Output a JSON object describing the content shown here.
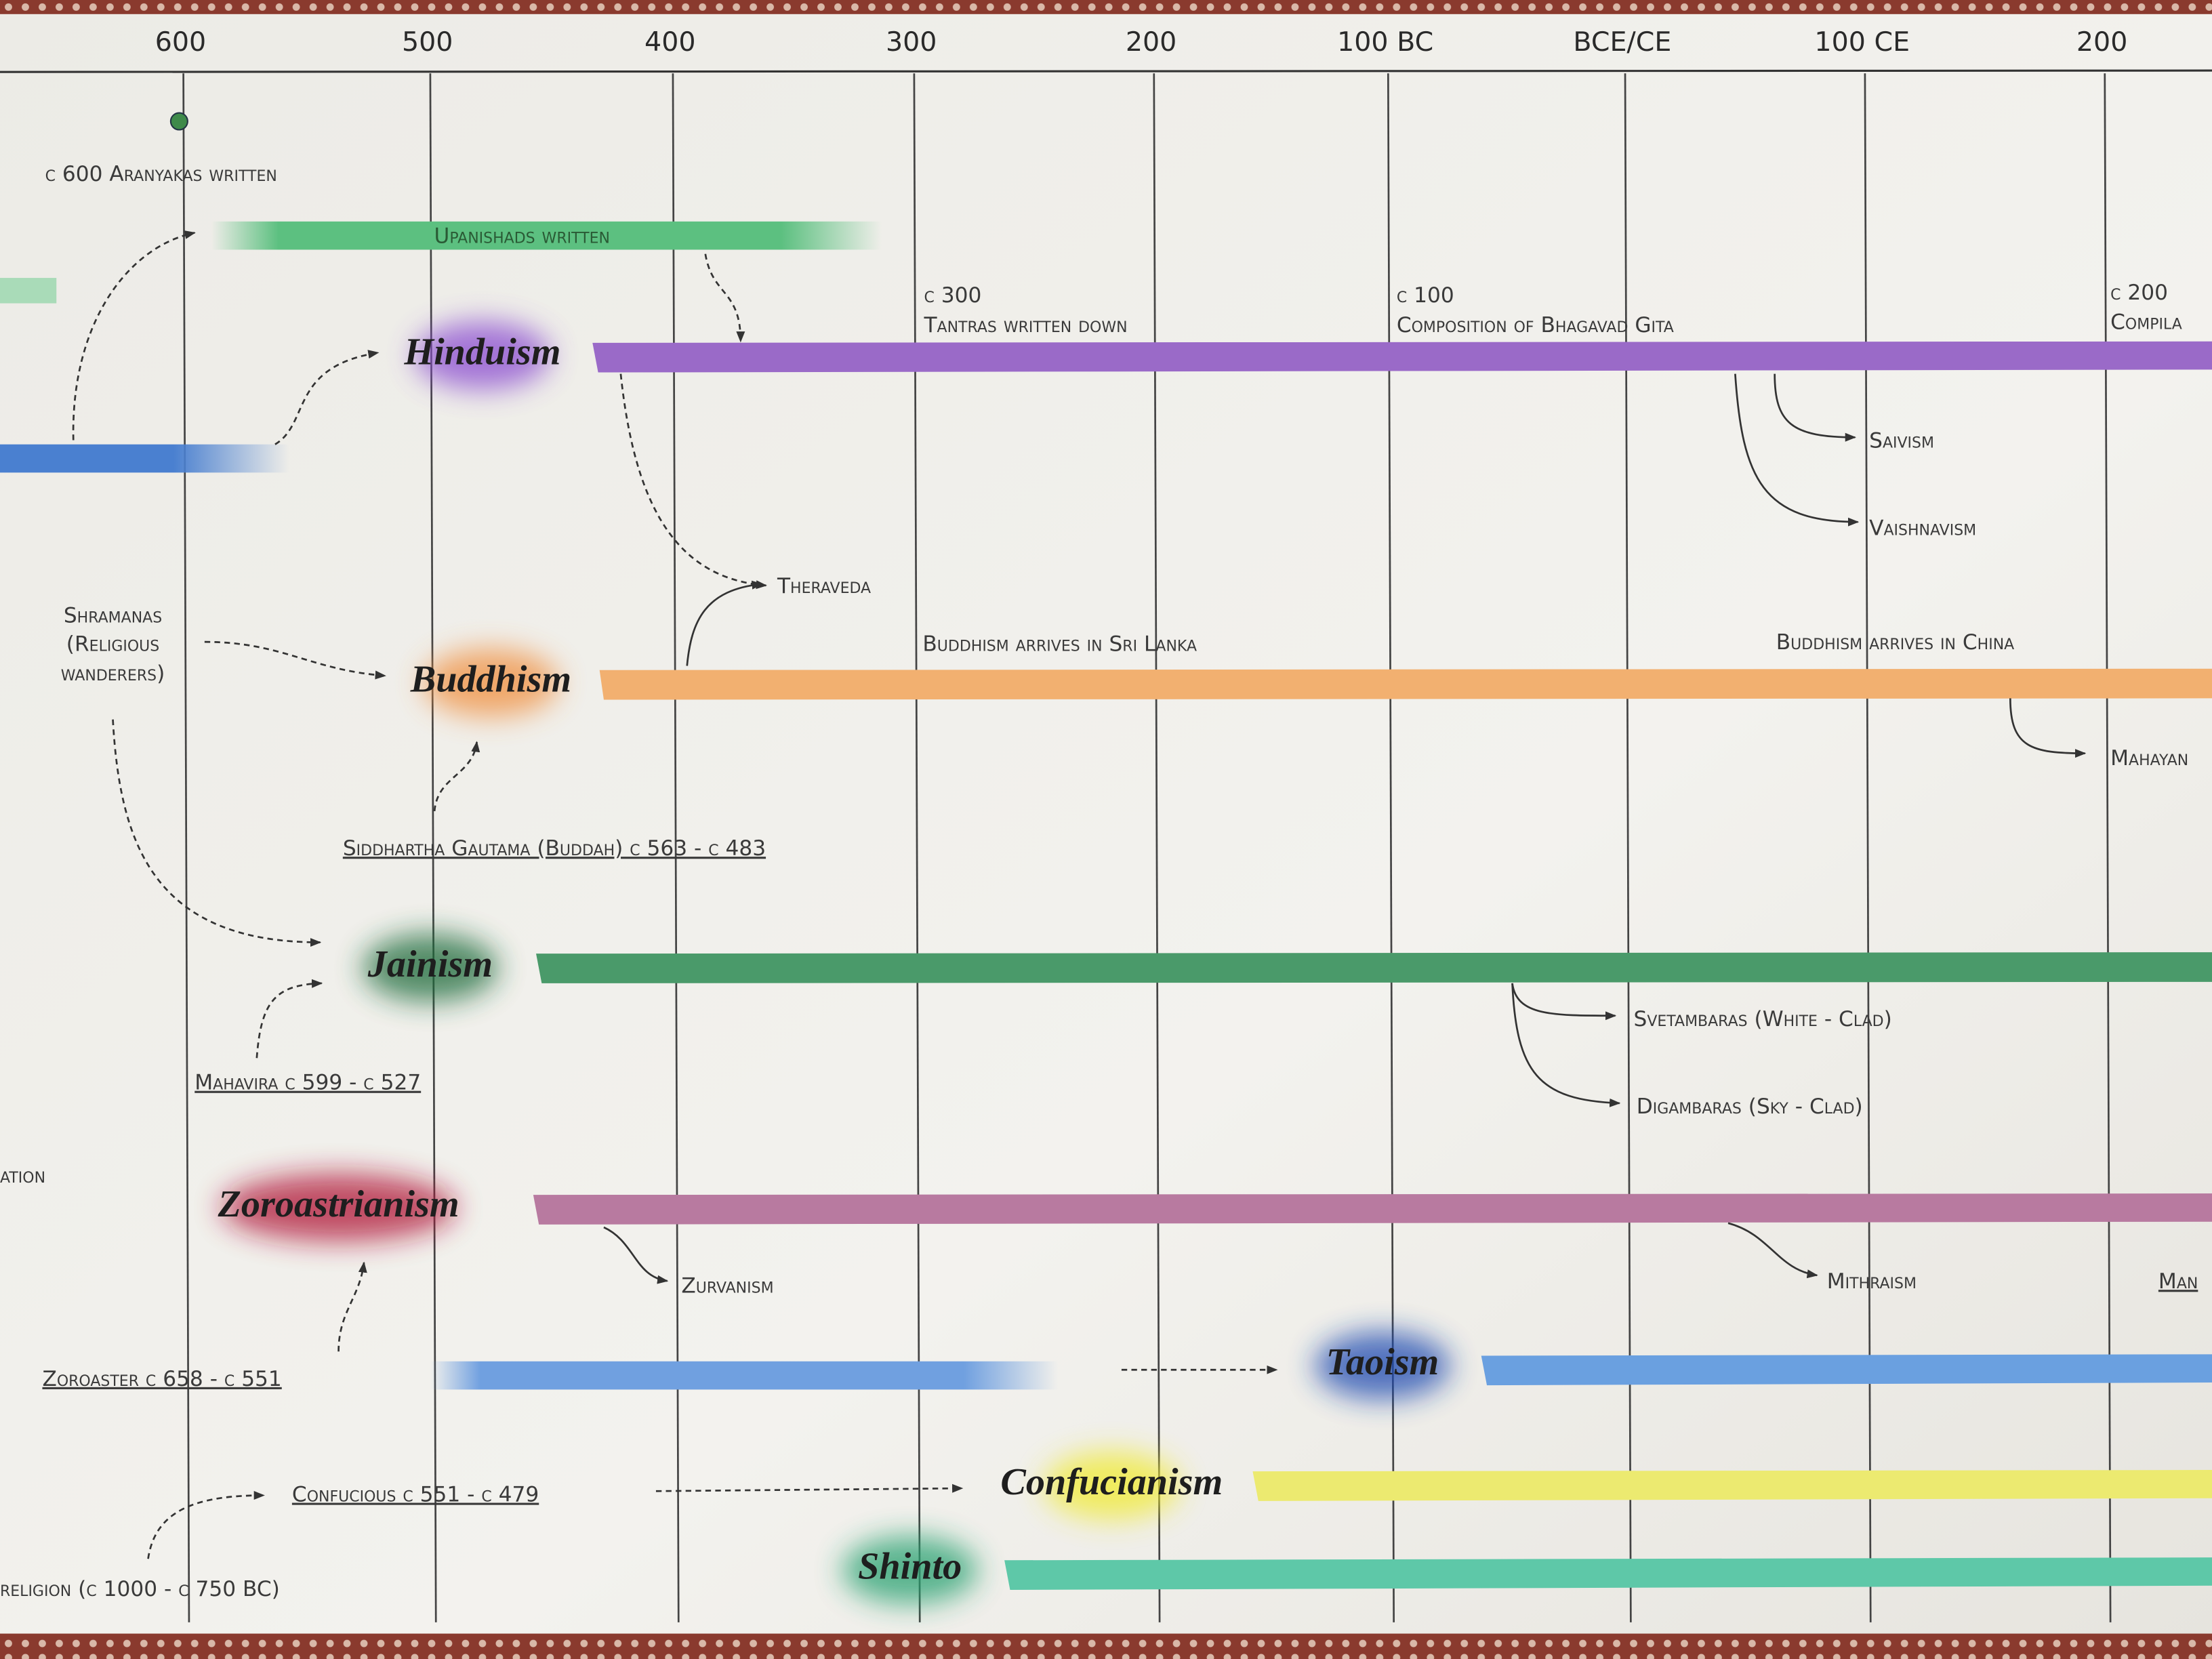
{
  "timeline": {
    "ticks": [
      "600",
      "500",
      "400",
      "300",
      "200",
      "100 BC",
      "BCE/CE",
      "100 CE",
      "200"
    ],
    "religions": [
      "Hinduism",
      "Buddhism",
      "Jainism",
      "Zoroastrianism",
      "Taoism",
      "Confucianism",
      "Shinto"
    ]
  },
  "annotations": [
    "c 600 Aranyakas written",
    "Upanishads written",
    "c 300",
    "Tantras written down",
    "c 100",
    "Composition of Bhagavad Gita",
    "c 200",
    "Compila",
    "Saivism",
    "Vaishnavism",
    "Theraveda",
    "Shramanas",
    "(Religious",
    "wanderers)",
    "Buddhism arrives in Sri Lanka",
    "Buddhism arrives in China",
    "Mahayan",
    "Siddhartha Gautama (Buddah) c 563 - c 483",
    "Mahavira c 599 - c 527",
    "Svetambaras (White - Clad)",
    "Digambaras (Sky - Clad)",
    "ation",
    "Zurvanism",
    "Mithraism",
    "Man",
    "Zoroaster c 658 - c 551",
    "Confucious c 551 - c 479",
    "religion (c 1000 - c 750 BC)"
  ]
}
